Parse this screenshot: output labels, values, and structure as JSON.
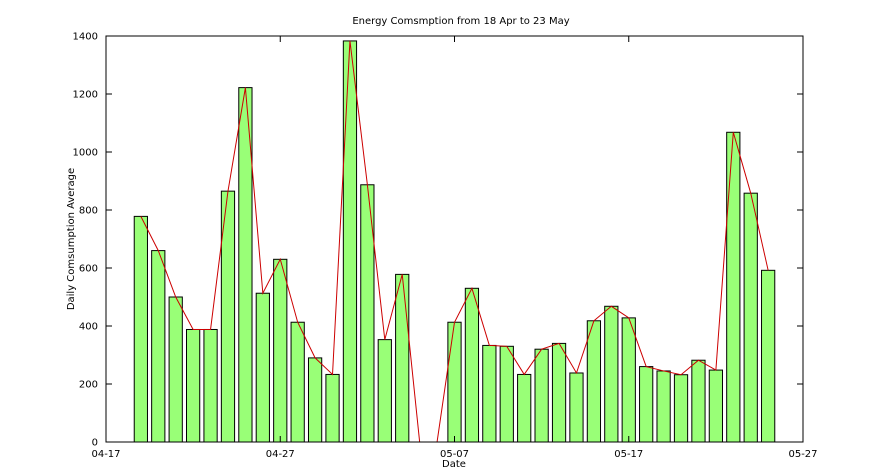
{
  "chart_data": {
    "type": "bar",
    "title": "Energy Comsmption from 18 Apr to 23 May",
    "xlabel": "Date",
    "ylabel": "Daily Comsumption Average",
    "ylim": [
      0,
      1400
    ],
    "yticks": [
      0,
      200,
      400,
      600,
      800,
      1000,
      1200,
      1400
    ],
    "xlim": [
      "04-17",
      "05-27"
    ],
    "xticks": [
      "04-17",
      "04-27",
      "05-07",
      "05-17",
      "05-27"
    ],
    "grid": false,
    "legend": "none",
    "colors": {
      "bar_fill": "#99ff77",
      "bar_edge": "#000000",
      "line": "#cc0000"
    },
    "x": [
      "04-19",
      "04-20",
      "04-21",
      "04-22",
      "04-23",
      "04-24",
      "04-25",
      "04-26",
      "04-27",
      "04-28",
      "04-29",
      "04-30",
      "05-01",
      "05-02",
      "05-03",
      "05-04",
      "05-05",
      "05-06",
      "05-07",
      "05-08",
      "05-09",
      "05-10",
      "05-11",
      "05-12",
      "05-13",
      "05-14",
      "05-15",
      "05-16",
      "05-17",
      "05-18",
      "05-19",
      "05-20",
      "05-21",
      "05-22",
      "05-23",
      "05-24",
      "05-25"
    ],
    "values": [
      778,
      660,
      500,
      388,
      388,
      865,
      1222,
      513,
      630,
      413,
      290,
      233,
      1383,
      887,
      353,
      578,
      0,
      0,
      413,
      530,
      333,
      330,
      233,
      320,
      340,
      238,
      418,
      468,
      428,
      260,
      245,
      232,
      282,
      248,
      1068,
      858,
      592
    ]
  }
}
